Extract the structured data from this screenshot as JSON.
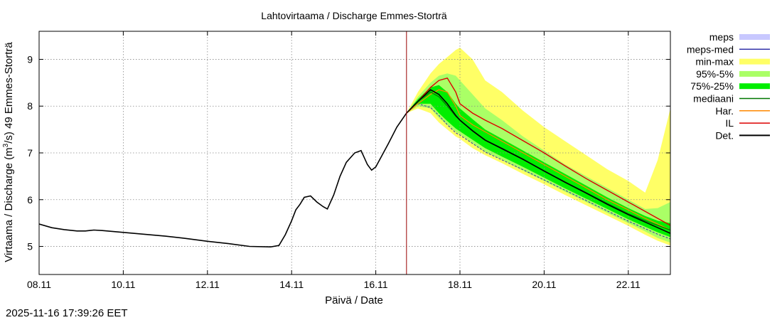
{
  "chart_data": {
    "type": "area",
    "title": "Lahtovirtaama / Discharge  Emmes-Storträ",
    "xlabel": "Päivä / Date",
    "ylabel_parts": [
      "Virtaama / Discharge (m",
      "3",
      "/s)  49 Emmes-Storträ"
    ],
    "timestamp": "2025-11-16 17:39:26 EET",
    "x_unit": "days since 08.11 00:00",
    "xlim": [
      0,
      15
    ],
    "ylim": [
      4.4,
      9.6
    ],
    "x_ticks": [
      {
        "x": 0,
        "label": "08.11"
      },
      {
        "x": 2,
        "label": "10.11"
      },
      {
        "x": 4,
        "label": "12.11"
      },
      {
        "x": 6,
        "label": "14.11"
      },
      {
        "x": 8,
        "label": "16.11"
      },
      {
        "x": 10,
        "label": "18.11"
      },
      {
        "x": 12,
        "label": "20.11"
      },
      {
        "x": 14,
        "label": "22.11"
      }
    ],
    "y_ticks": [
      {
        "y": 5,
        "label": "5"
      },
      {
        "y": 6,
        "label": "6"
      },
      {
        "y": 7,
        "label": "7"
      },
      {
        "y": 8,
        "label": "8"
      },
      {
        "y": 9,
        "label": "9"
      }
    ],
    "grid": true,
    "forecast_start_x": 8.73,
    "colors": {
      "minmax": "#ffff66",
      "p95_5": "#aaff66",
      "p75_25": "#00ee00",
      "meps_band": "#c8c8ff",
      "meps_med": "#3333aa",
      "mediaani": "#007700",
      "har": "#ff8800",
      "il": "#dd0000",
      "det": "#000000",
      "forecast_line": "#990000"
    },
    "legend": [
      {
        "label": "meps",
        "kind": "band",
        "color_key": "meps_band"
      },
      {
        "label": "meps-med",
        "kind": "line",
        "color_key": "meps_med"
      },
      {
        "label": "min-max",
        "kind": "band",
        "color_key": "minmax"
      },
      {
        "label": "95%-5%",
        "kind": "band",
        "color_key": "p95_5"
      },
      {
        "label": "75%-25%",
        "kind": "band",
        "color_key": "p75_25"
      },
      {
        "label": "mediaani",
        "kind": "line",
        "color_key": "mediaani"
      },
      {
        "label": "Har.",
        "kind": "line",
        "color_key": "har"
      },
      {
        "label": "IL",
        "kind": "line",
        "color_key": "il"
      },
      {
        "label": "Det.",
        "kind": "line",
        "color_key": "det"
      }
    ],
    "series": {
      "observed": {
        "x": [
          0,
          0.3,
          0.6,
          0.9,
          1.1,
          1.3,
          1.5,
          2,
          2.5,
          3,
          3.5,
          4,
          4.5,
          5,
          5.5,
          5.7,
          5.85,
          6.0,
          6.1,
          6.2,
          6.3,
          6.45,
          6.6,
          6.75,
          6.85,
          7.0,
          7.15,
          7.3,
          7.5,
          7.65,
          7.8,
          7.9,
          8.0,
          8.15,
          8.3,
          8.5,
          8.73
        ],
        "y": [
          5.48,
          5.4,
          5.36,
          5.33,
          5.33,
          5.35,
          5.34,
          5.3,
          5.26,
          5.22,
          5.17,
          5.11,
          5.06,
          5.0,
          4.99,
          5.02,
          5.25,
          5.55,
          5.78,
          5.9,
          6.05,
          6.08,
          5.95,
          5.85,
          5.8,
          6.1,
          6.5,
          6.8,
          7.0,
          7.05,
          6.75,
          6.63,
          6.7,
          6.95,
          7.2,
          7.55,
          7.85
        ]
      },
      "forecast_x": [
        8.73,
        9.0,
        9.3,
        9.5,
        9.7,
        9.9,
        10.0,
        10.3,
        10.6,
        11.0,
        11.5,
        12.0,
        12.5,
        13.0,
        13.5,
        14.0,
        14.4,
        14.7,
        15.0
      ],
      "minmax_upper": [
        7.85,
        8.3,
        8.7,
        8.9,
        9.05,
        9.2,
        9.25,
        9.0,
        8.55,
        8.3,
        7.9,
        7.55,
        7.25,
        6.95,
        6.65,
        6.4,
        6.15,
        6.85,
        7.95
      ],
      "minmax_lower": [
        7.85,
        7.95,
        7.85,
        7.65,
        7.5,
        7.35,
        7.3,
        7.1,
        6.95,
        6.78,
        6.55,
        6.33,
        6.1,
        5.88,
        5.66,
        5.44,
        5.25,
        5.12,
        5.02
      ],
      "p95_upper": [
        7.85,
        8.2,
        8.5,
        8.65,
        8.7,
        8.65,
        8.55,
        8.25,
        7.95,
        7.7,
        7.35,
        7.05,
        6.75,
        6.5,
        6.25,
        6.0,
        5.8,
        5.82,
        5.95
      ],
      "p95_lower": [
        7.85,
        8.0,
        7.95,
        7.75,
        7.6,
        7.45,
        7.4,
        7.2,
        7.02,
        6.85,
        6.62,
        6.4,
        6.17,
        5.95,
        5.72,
        5.5,
        5.32,
        5.18,
        5.08
      ],
      "p75_upper": [
        7.85,
        8.15,
        8.4,
        8.45,
        8.3,
        8.05,
        7.95,
        7.72,
        7.5,
        7.3,
        7.05,
        6.8,
        6.55,
        6.3,
        6.05,
        5.82,
        5.65,
        5.55,
        5.5
      ],
      "p75_lower": [
        7.85,
        8.05,
        8.05,
        7.85,
        7.68,
        7.52,
        7.46,
        7.28,
        7.1,
        6.92,
        6.7,
        6.47,
        6.24,
        6.02,
        5.8,
        5.58,
        5.42,
        5.3,
        5.2
      ],
      "mediaani": [
        7.85,
        8.1,
        8.3,
        8.2,
        8.0,
        7.78,
        7.7,
        7.48,
        7.28,
        7.1,
        6.87,
        6.62,
        6.38,
        6.15,
        5.92,
        5.7,
        5.55,
        5.45,
        5.35
      ],
      "meps_med": [
        7.85,
        8.05,
        7.97,
        7.8,
        7.6,
        7.43,
        7.38,
        7.2,
        7.02,
        6.85,
        6.64,
        6.42,
        6.2,
        5.98,
        5.76,
        5.54,
        5.38,
        5.26,
        5.16
      ],
      "det": [
        7.85,
        8.1,
        8.35,
        8.25,
        8.05,
        7.8,
        7.7,
        7.47,
        7.27,
        7.09,
        6.86,
        6.61,
        6.37,
        6.14,
        5.9,
        5.68,
        5.52,
        5.4,
        5.28
      ],
      "il": [
        7.85,
        8.1,
        8.4,
        8.55,
        8.6,
        8.3,
        8.05,
        7.85,
        7.7,
        7.52,
        7.26,
        7.0,
        6.72,
        6.45,
        6.2,
        5.95,
        5.75,
        5.6,
        5.45
      ],
      "har": [
        7.85,
        8.05,
        8.25,
        8.35,
        8.3,
        8.0,
        7.8,
        7.6,
        7.45,
        7.25,
        7.0,
        6.75,
        6.5,
        6.25,
        6.0,
        5.78,
        5.6,
        5.48,
        5.35
      ]
    }
  }
}
